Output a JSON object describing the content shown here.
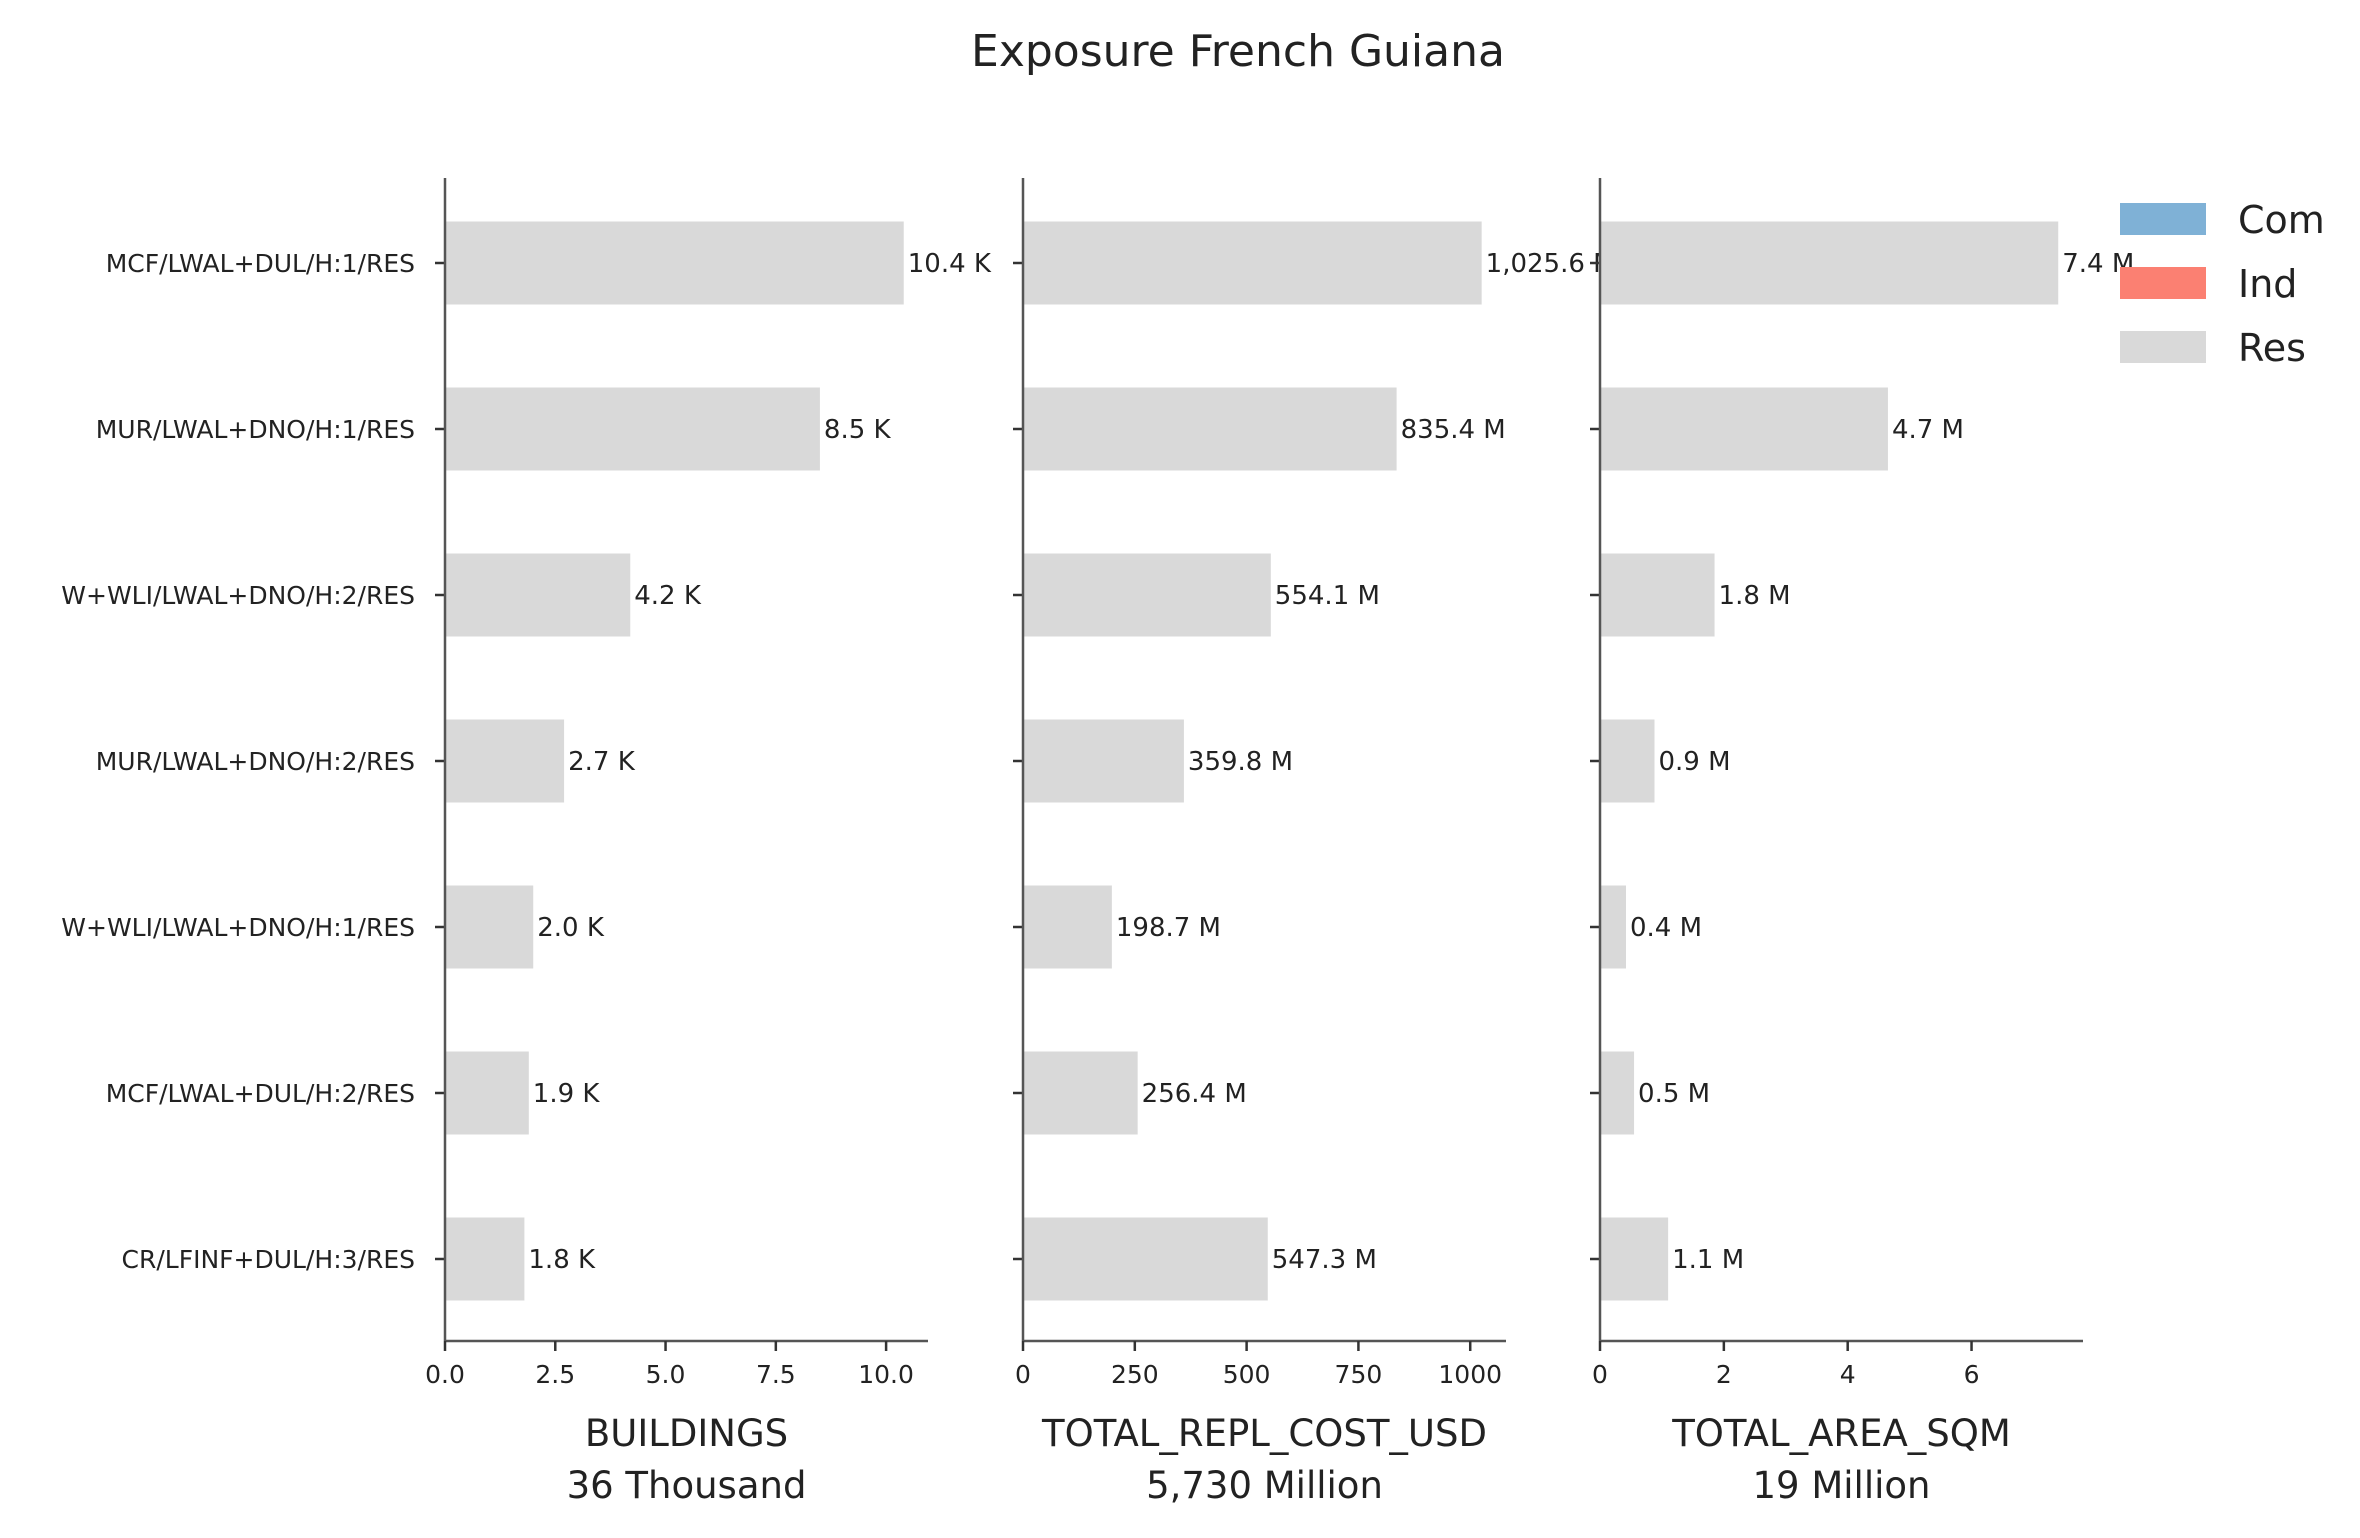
{
  "title": "Exposure French Guiana",
  "categories": [
    "MCF/LWAL+DUL/H:1/RES",
    "MUR/LWAL+DNO/H:1/RES",
    "W+WLI/LWAL+DNO/H:2/RES",
    "MUR/LWAL+DNO/H:2/RES",
    "W+WLI/LWAL+DNO/H:1/RES",
    "MCF/LWAL+DUL/H:2/RES",
    "CR/LFINF+DUL/H:3/RES"
  ],
  "legend": {
    "placement": "top-right",
    "items": [
      {
        "name": "Com",
        "color": "#7fb1d6"
      },
      {
        "name": "Ind",
        "color": "#fb8072"
      },
      {
        "name": "Res",
        "color": "#d9d9d9"
      }
    ]
  },
  "chart_data": [
    {
      "type": "bar",
      "orientation": "horizontal",
      "categories": [
        "MCF/LWAL+DUL/H:1/RES",
        "MUR/LWAL+DNO/H:1/RES",
        "W+WLI/LWAL+DNO/H:2/RES",
        "MUR/LWAL+DNO/H:2/RES",
        "W+WLI/LWAL+DNO/H:1/RES",
        "MCF/LWAL+DUL/H:2/RES",
        "CR/LFINF+DUL/H:3/RES"
      ],
      "series": [
        {
          "name": "Res",
          "color": "#d9d9d9",
          "values": [
            10.4,
            8.5,
            4.2,
            2.7,
            2.0,
            1.9,
            1.8
          ]
        }
      ],
      "data_labels": [
        "10.4 K",
        "8.5 K",
        "4.2 K",
        "2.7 K",
        "2.0 K",
        "1.9 K",
        "1.8 K"
      ],
      "xlabel": "BUILDINGS",
      "xlabel_total": "36 Thousand",
      "xlim": [
        0,
        10.95
      ],
      "ticks": [
        0,
        2.5,
        5,
        7.5,
        10
      ],
      "tick_labels": [
        "0.0",
        "2.5",
        "5.0",
        "7.5",
        "10.0"
      ],
      "grid": false
    },
    {
      "type": "bar",
      "orientation": "horizontal",
      "categories": [
        "MCF/LWAL+DUL/H:1/RES",
        "MUR/LWAL+DNO/H:1/RES",
        "W+WLI/LWAL+DNO/H:2/RES",
        "MUR/LWAL+DNO/H:2/RES",
        "W+WLI/LWAL+DNO/H:1/RES",
        "MCF/LWAL+DUL/H:2/RES",
        "CR/LFINF+DUL/H:3/RES"
      ],
      "series": [
        {
          "name": "Res",
          "color": "#d9d9d9",
          "values": [
            1025.6,
            835.4,
            554.1,
            359.8,
            198.7,
            256.4,
            547.3
          ]
        }
      ],
      "data_labels": [
        "1,025.6 M",
        "835.4 M",
        "554.1 M",
        "359.8 M",
        "198.7 M",
        "256.4 M",
        "547.3 M"
      ],
      "xlabel": "TOTAL_REPL_COST_USD",
      "xlabel_total": "5,730 Million",
      "xlim": [
        0,
        1080
      ],
      "ticks": [
        0,
        250,
        500,
        750,
        1000
      ],
      "tick_labels": [
        "0",
        "250",
        "500",
        "750",
        "1000"
      ],
      "grid": false
    },
    {
      "type": "bar",
      "orientation": "horizontal",
      "categories": [
        "MCF/LWAL+DUL/H:1/RES",
        "MUR/LWAL+DNO/H:1/RES",
        "W+WLI/LWAL+DNO/H:2/RES",
        "MUR/LWAL+DNO/H:2/RES",
        "W+WLI/LWAL+DNO/H:1/RES",
        "MCF/LWAL+DUL/H:2/RES",
        "CR/LFINF+DUL/H:3/RES"
      ],
      "series": [
        {
          "name": "Res",
          "color": "#d9d9d9",
          "values": [
            7.4,
            4.65,
            1.85,
            0.88,
            0.42,
            0.55,
            1.1
          ]
        }
      ],
      "data_labels": [
        "7.4 M",
        "4.7 M",
        "1.8 M",
        "0.9 M",
        "0.4 M",
        "0.5 M",
        "1.1 M"
      ],
      "xlabel": "TOTAL_AREA_SQM",
      "xlabel_total": "19 Million",
      "xlim": [
        0,
        7.8
      ],
      "ticks": [
        0,
        2,
        4,
        6
      ],
      "tick_labels": [
        "0",
        "2",
        "4",
        "6"
      ],
      "grid": false
    }
  ]
}
